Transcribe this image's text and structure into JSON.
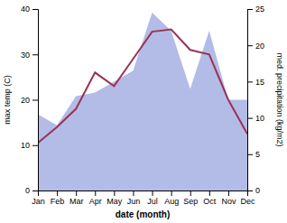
{
  "chart_data": {
    "type": "line",
    "categories": [
      "Jan",
      "Feb",
      "Mar",
      "Apr",
      "May",
      "Jun",
      "Jul",
      "Aug",
      "Sep",
      "Oct",
      "Nov",
      "Dec"
    ],
    "xlabel": "date (month)",
    "ylabel": "max temp (C)",
    "y2label": "med. precipitation (kg/m2)",
    "ylim": [
      0,
      40
    ],
    "yticks": [
      0,
      10,
      20,
      30,
      40
    ],
    "y2lim": [
      0,
      25
    ],
    "y2ticks": [
      0,
      5,
      10,
      15,
      20,
      25
    ],
    "series": [
      {
        "type": "area",
        "axis": "y2",
        "color": "#b3bce6",
        "values": [
          10.5,
          9.0,
          13.0,
          13.5,
          15.0,
          16.5,
          24.5,
          22.0,
          14.0,
          22.0,
          12.5,
          12.5
        ]
      },
      {
        "type": "line",
        "color": "#993355",
        "values": [
          10.5,
          14.0,
          18.0,
          26.0,
          23.0,
          29.0,
          35.0,
          35.5,
          31.0,
          30.0,
          20.0,
          12.5
        ]
      }
    ]
  }
}
